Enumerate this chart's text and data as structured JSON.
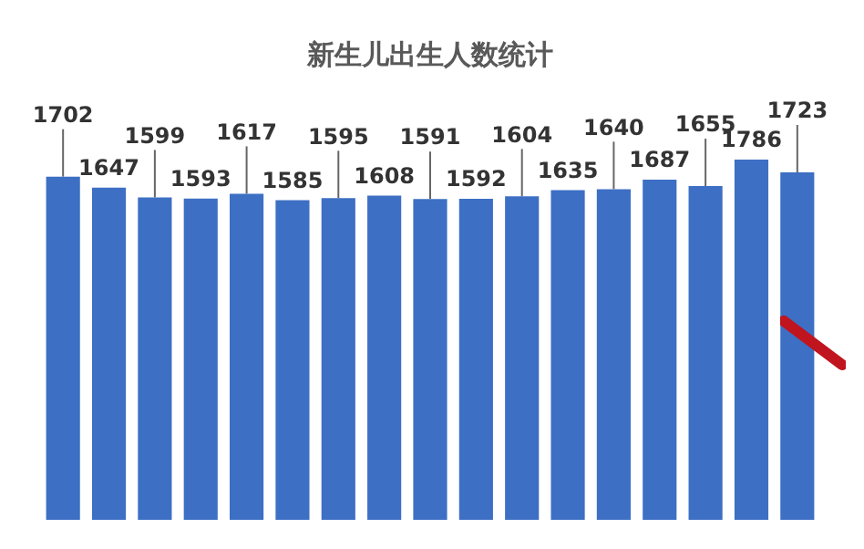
{
  "chart_data": {
    "type": "bar",
    "title": "新生儿出生人数统计",
    "categories": [
      null,
      null,
      null,
      null,
      null,
      null,
      null,
      null,
      null,
      null,
      null,
      null,
      null,
      null,
      null,
      null,
      null
    ],
    "values": [
      1702,
      1647,
      1599,
      1593,
      1617,
      1585,
      1595,
      1608,
      1591,
      1592,
      1604,
      1635,
      1640,
      1687,
      1655,
      1786,
      1723
    ],
    "color": "#3d6fc4",
    "data_labels": true,
    "grid": false,
    "legend": false
  }
}
